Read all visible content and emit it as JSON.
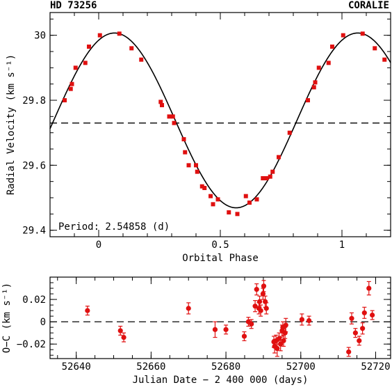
{
  "header": {
    "left_title": "HD 73256",
    "right_title": "CORALIE"
  },
  "chart_data": [
    {
      "type": "scatter",
      "panel": "top",
      "xlabel": "Orbital Phase",
      "ylabel": "Radial Velocity (km s⁻¹)",
      "xlim": [
        -0.2,
        1.2
      ],
      "ylim": [
        29.38,
        30.07
      ],
      "xticks": [
        0,
        0.5,
        1
      ],
      "xtick_labels": [
        "0",
        "0.5",
        "1"
      ],
      "yticks": [
        29.4,
        29.6,
        29.8,
        30.0
      ],
      "ytick_labels": [
        "29.4",
        "29.6",
        "29.8",
        "30"
      ],
      "annotation": "Period: 2.54858 (d)",
      "systemic_velocity": 29.73,
      "model": {
        "gamma": 29.738,
        "amplitude": 0.269,
        "phase_of_max": 0.065
      },
      "points": [
        [
          -0.14,
          29.8
        ],
        [
          -0.115,
          29.835
        ],
        [
          -0.11,
          29.85
        ],
        [
          -0.095,
          29.9
        ],
        [
          -0.055,
          29.915
        ],
        [
          -0.04,
          29.965
        ],
        [
          0.005,
          30.0
        ],
        [
          0.085,
          30.005
        ],
        [
          0.135,
          29.96
        ],
        [
          0.175,
          29.925
        ],
        [
          0.255,
          29.795
        ],
        [
          0.26,
          29.785
        ],
        [
          0.29,
          29.75
        ],
        [
          0.305,
          29.75
        ],
        [
          0.31,
          29.73
        ],
        [
          0.35,
          29.68
        ],
        [
          0.355,
          29.64
        ],
        [
          0.37,
          29.6
        ],
        [
          0.4,
          29.6
        ],
        [
          0.405,
          29.58
        ],
        [
          0.425,
          29.535
        ],
        [
          0.435,
          29.53
        ],
        [
          0.46,
          29.505
        ],
        [
          0.47,
          29.48
        ],
        [
          0.49,
          29.495
        ],
        [
          0.535,
          29.455
        ],
        [
          0.57,
          29.45
        ],
        [
          0.605,
          29.505
        ],
        [
          0.62,
          29.485
        ],
        [
          0.65,
          29.495
        ],
        [
          0.675,
          29.56
        ],
        [
          0.69,
          29.56
        ],
        [
          0.705,
          29.565
        ],
        [
          0.715,
          29.58
        ],
        [
          0.74,
          29.625
        ],
        [
          0.785,
          29.7
        ],
        [
          0.86,
          29.8
        ],
        [
          0.885,
          29.84
        ],
        [
          0.89,
          29.855
        ],
        [
          0.905,
          29.9
        ],
        [
          0.945,
          29.915
        ],
        [
          0.96,
          29.965
        ],
        [
          1.005,
          30.0
        ],
        [
          1.085,
          30.005
        ],
        [
          1.135,
          29.96
        ],
        [
          1.175,
          29.925
        ]
      ]
    },
    {
      "type": "scatter",
      "panel": "bottom",
      "xlabel": "Julian Date − 2 400 000 (days)",
      "ylabel": "O−C (km s⁻¹)",
      "xlim": [
        52633,
        52724
      ],
      "ylim": [
        -0.033,
        0.04
      ],
      "xticks": [
        52640,
        52660,
        52680,
        52700,
        52720
      ],
      "xtick_labels": [
        "52640",
        "52660",
        "52680",
        "52700",
        "52720"
      ],
      "yticks": [
        -0.02,
        0,
        0.02
      ],
      "ytick_labels": [
        "−0.02",
        "0",
        "0.02"
      ],
      "reference_line": 0,
      "points": [
        [
          52643.0,
          0.01,
          0.004
        ],
        [
          52651.8,
          -0.008,
          0.004
        ],
        [
          52652.7,
          -0.014,
          0.004
        ],
        [
          52670.0,
          0.012,
          0.005
        ],
        [
          52677.1,
          -0.007,
          0.007
        ],
        [
          52680.0,
          -0.007,
          0.004
        ],
        [
          52684.9,
          -0.013,
          0.004
        ],
        [
          52686.0,
          0.0,
          0.004
        ],
        [
          52686.8,
          -0.002,
          0.004
        ],
        [
          52687.8,
          0.014,
          0.005
        ],
        [
          52688.2,
          0.029,
          0.005
        ],
        [
          52688.8,
          0.012,
          0.005
        ],
        [
          52689.0,
          0.018,
          0.005
        ],
        [
          52689.3,
          0.01,
          0.005
        ],
        [
          52689.9,
          0.025,
          0.005
        ],
        [
          52690.1,
          0.032,
          0.005
        ],
        [
          52690.5,
          0.018,
          0.005
        ],
        [
          52690.8,
          0.012,
          0.005
        ],
        [
          52692.8,
          -0.018,
          0.005
        ],
        [
          52693.0,
          -0.022,
          0.006
        ],
        [
          52693.4,
          -0.017,
          0.005
        ],
        [
          52693.7,
          -0.024,
          0.007
        ],
        [
          52694.2,
          -0.015,
          0.005
        ],
        [
          52694.6,
          -0.02,
          0.006
        ],
        [
          52695.0,
          -0.008,
          0.005
        ],
        [
          52695.2,
          -0.005,
          0.005
        ],
        [
          52695.4,
          -0.017,
          0.005
        ],
        [
          52695.8,
          -0.01,
          0.005
        ],
        [
          52696.0,
          -0.003,
          0.006
        ],
        [
          52700.3,
          0.002,
          0.005
        ],
        [
          52702.2,
          0.001,
          0.004
        ],
        [
          52712.8,
          -0.027,
          0.004
        ],
        [
          52713.6,
          0.003,
          0.005
        ],
        [
          52714.6,
          -0.01,
          0.004
        ],
        [
          52715.6,
          -0.017,
          0.004
        ],
        [
          52716.5,
          -0.006,
          0.005
        ],
        [
          52717.0,
          0.008,
          0.005
        ],
        [
          52718.2,
          0.03,
          0.006
        ],
        [
          52719.1,
          0.006,
          0.004
        ]
      ]
    }
  ]
}
